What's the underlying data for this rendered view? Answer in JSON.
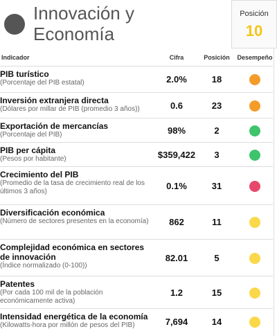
{
  "header": {
    "title": "Innovación y Economía",
    "position_label": "Posición",
    "position": 10
  },
  "table": {
    "columns": [
      "Indicador",
      "Cifra",
      "Posición",
      "Desempeño"
    ],
    "rows": [
      {
        "indicator": "PIB turístico",
        "description": "(Porcentaje del PIB estatal)",
        "value": "2.0%",
        "position": 18,
        "color": "#f39c2a"
      },
      {
        "indicator": "Inversión extranjera directa",
        "description": "(Dólares por millar de PIB (promedio 3 años))",
        "value": "0.6",
        "position": 23,
        "color": "#f39c2a"
      },
      {
        "indicator": "Exportación de mercancías",
        "description": "(Porcentaje del PIB)",
        "value": "98%",
        "position": 2,
        "color": "#3ec46d"
      },
      {
        "indicator": "PIB per cápita",
        "description": "(Pesos por habitante)",
        "value": "$359,422",
        "position": 3,
        "color": "#3ec46d"
      },
      {
        "indicator": "Crecimiento del PIB",
        "description": "(Promedio de la tasa de crecimiento real de los últimos 3 años)",
        "value": "0.1%",
        "position": 31,
        "color": "#e8476c"
      },
      {
        "indicator": "Diversificación económica",
        "description": "(Número de sectores presentes en la economía)",
        "value": "862",
        "position": 11,
        "color": "#fad84a"
      },
      {
        "indicator": "Complejidad económica en sectores de innovación",
        "description": "(Índice normalizado (0-100))",
        "value": "82.01",
        "position": 5,
        "color": "#fad84a"
      },
      {
        "indicator": "Patentes",
        "description": "(Por cada 100 mil de la población económicamente activa)",
        "value": "1.2",
        "position": 15,
        "color": "#fad84a"
      },
      {
        "indicator": "Intensidad energética de la economía",
        "description": "(Kilowatts-hora por millón de pesos del PIB)",
        "value": "7,694",
        "position": 14,
        "color": "#fad84a"
      }
    ]
  }
}
